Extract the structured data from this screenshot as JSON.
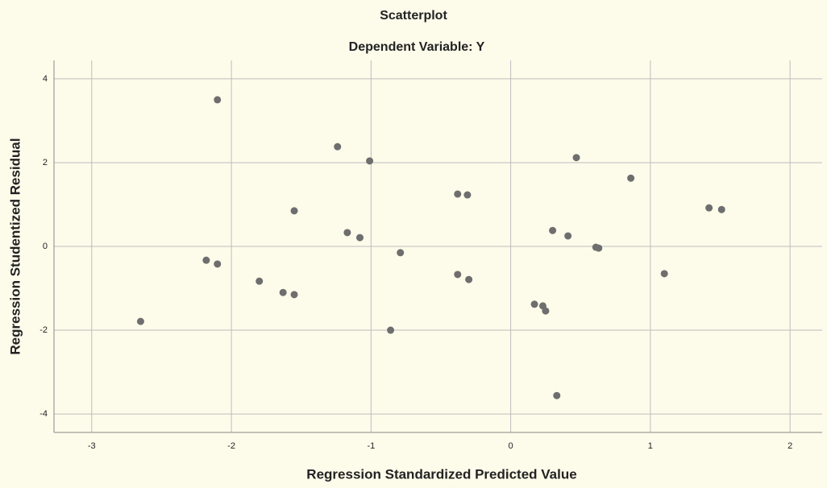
{
  "chart_data": {
    "type": "scatter",
    "title": "Scatterplot",
    "subtitle": "Dependent Variable: Y",
    "x_label": "Regression Standardized Predicted Value",
    "y_label": "Regression Studentized Residual",
    "color": "#6e6e6e",
    "grid": true,
    "xlim": [
      -3.27,
      2.23
    ],
    "ylim": [
      -4.44,
      4.44
    ],
    "xticks": [
      -3,
      -2,
      -1,
      0,
      1,
      2
    ],
    "yticks": [
      -4,
      -2,
      0,
      2,
      4
    ],
    "x": [
      -2.65,
      -2.1,
      -2.18,
      -2.1,
      -1.8,
      -1.63,
      -1.55,
      -1.55,
      -1.24,
      -1.17,
      -1.08,
      -1.01,
      -0.79,
      -0.86,
      -0.38,
      -0.31,
      -0.38,
      -0.3,
      0.17,
      0.23,
      0.25,
      0.33,
      0.3,
      0.41,
      0.47,
      0.61,
      0.63,
      0.86,
      1.1,
      1.42,
      1.51
    ],
    "y": [
      -1.79,
      3.5,
      -0.33,
      -0.42,
      -0.83,
      -1.1,
      -1.15,
      0.85,
      2.38,
      0.33,
      0.21,
      2.04,
      -0.15,
      -2.0,
      1.25,
      1.23,
      -0.67,
      -0.79,
      -1.38,
      -1.42,
      -1.54,
      -3.56,
      0.38,
      0.25,
      2.12,
      -0.02,
      -0.04,
      1.63,
      -0.65,
      0.92,
      0.88
    ]
  }
}
